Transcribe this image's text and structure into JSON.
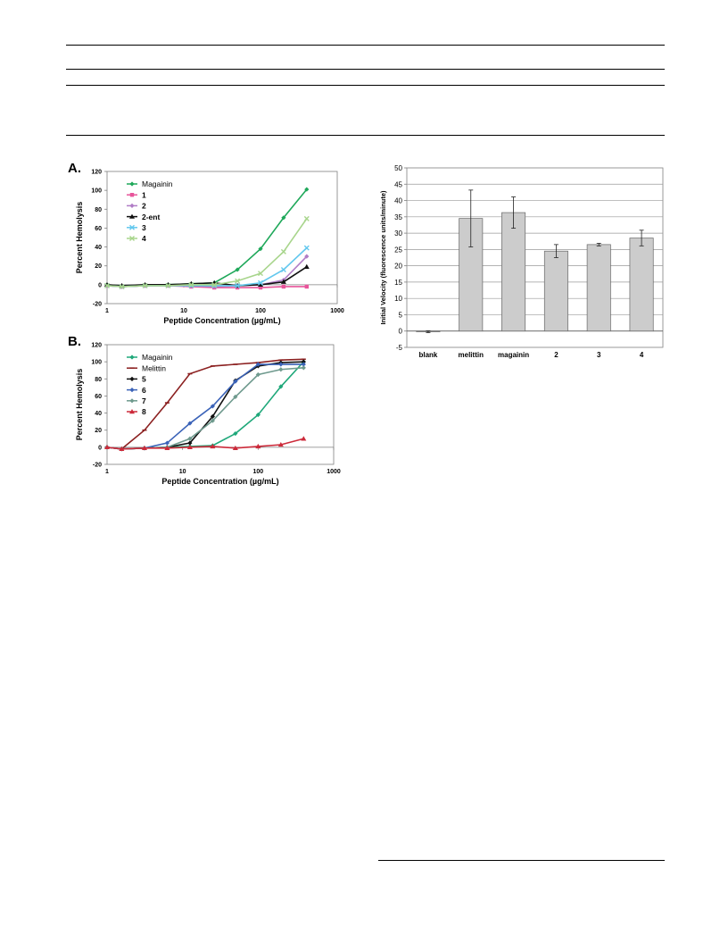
{
  "chart_data": [
    {
      "type": "line",
      "panel_label": "A.",
      "xlabel": "Peptide Concentration (µg/mL)",
      "ylabel": "Percent Hemolysis",
      "xscale": "log",
      "xlim": [
        1,
        1000
      ],
      "ylim": [
        -20,
        120
      ],
      "xticks": [
        1,
        10,
        100,
        1000
      ],
      "xticklabels": [
        "1",
        "10",
        "100",
        "1000"
      ],
      "yticks": [
        -20,
        0,
        20,
        40,
        60,
        80,
        100,
        120
      ],
      "yticklabels": [
        "-20",
        "0",
        "20",
        "40",
        "60",
        "80",
        "100",
        "120"
      ],
      "grid": false,
      "legend_position": "top-left",
      "x": [
        1,
        1.56,
        3.13,
        6.25,
        12.5,
        25,
        50,
        100,
        200,
        400
      ],
      "series": [
        {
          "name": "Magainin",
          "color": "#1fa85a",
          "marker": "diamond",
          "values": [
            0,
            -2,
            -1,
            0,
            1,
            2,
            16,
            38,
            71,
            101
          ]
        },
        {
          "name": "1",
          "color": "#e8559b",
          "marker": "square",
          "values": [
            -1,
            -2,
            -1,
            -1,
            -2,
            -3,
            -3,
            -3,
            -2,
            -2
          ]
        },
        {
          "name": "2",
          "color": "#b07cc6",
          "marker": "diamond",
          "values": [
            -1,
            -2,
            -1,
            -1,
            -1,
            -2,
            -1,
            0,
            5,
            30
          ]
        },
        {
          "name": "2-ent",
          "color": "#111111",
          "marker": "triangle",
          "values": [
            0,
            -1,
            0,
            0,
            1,
            2,
            -1,
            0,
            3,
            19
          ]
        },
        {
          "name": "3",
          "color": "#63c8ee",
          "marker": "cross",
          "values": [
            -1,
            -2,
            -1,
            -1,
            -1,
            -1,
            -1,
            2,
            16,
            39
          ]
        },
        {
          "name": "4",
          "color": "#a8d58c",
          "marker": "cross",
          "values": [
            -1,
            -2,
            -1,
            -1,
            0,
            0,
            4,
            12,
            35,
            70
          ]
        }
      ]
    },
    {
      "type": "line",
      "panel_label": "B.",
      "xlabel": "Peptide Concentration (µg/mL)",
      "ylabel": "Percent Hemolysis",
      "xscale": "log",
      "xlim": [
        1,
        1000
      ],
      "ylim": [
        -20,
        120
      ],
      "xticks": [
        1,
        10,
        100,
        1000
      ],
      "xticklabels": [
        "1",
        "10",
        "100",
        "1000"
      ],
      "yticks": [
        -20,
        0,
        20,
        40,
        60,
        80,
        100,
        120
      ],
      "yticklabels": [
        "-20",
        "0",
        "20",
        "40",
        "60",
        "80",
        "100",
        "120"
      ],
      "grid": false,
      "legend_position": "top-left",
      "x": [
        1,
        1.56,
        3.13,
        6.25,
        12.5,
        25,
        50,
        100,
        200,
        400
      ],
      "series": [
        {
          "name": "Magainin",
          "color": "#1fa87a",
          "marker": "diamond",
          "values": [
            0,
            -2,
            -1,
            0,
            1,
            2,
            16,
            38,
            71,
            100
          ]
        },
        {
          "name": "Melittin",
          "color": "#8b2020",
          "marker": "line",
          "values": [
            0,
            -2,
            20,
            52,
            86,
            95,
            97,
            99,
            102,
            103
          ]
        },
        {
          "name": "5",
          "color": "#111111",
          "marker": "diamond",
          "values": [
            0,
            -2,
            -1,
            0,
            5,
            36,
            78,
            95,
            99,
            100
          ]
        },
        {
          "name": "6",
          "color": "#3b63b8",
          "marker": "diamond",
          "values": [
            0,
            -2,
            -1,
            5,
            28,
            48,
            77,
            97,
            97,
            97
          ]
        },
        {
          "name": "7",
          "color": "#6f9a8e",
          "marker": "diamond",
          "values": [
            0,
            -2,
            -1,
            0,
            10,
            31,
            59,
            85,
            91,
            93
          ]
        },
        {
          "name": "8",
          "color": "#cc2a3a",
          "marker": "triangle",
          "values": [
            0,
            -2,
            -1,
            -1,
            0,
            1,
            -1,
            1,
            3,
            10
          ]
        }
      ]
    },
    {
      "type": "bar",
      "ylabel": "Initial Velocity (fluorescence units/minute)",
      "categories": [
        "blank",
        "melittin",
        "magainin",
        "2",
        "3",
        "4"
      ],
      "values": [
        -0.2,
        34.5,
        36.3,
        24.5,
        26.5,
        28.5
      ],
      "error": [
        0.3,
        8.7,
        4.8,
        2.0,
        0.4,
        2.4
      ],
      "ylim": [
        -5,
        50
      ],
      "yticks": [
        -5,
        0,
        5,
        10,
        15,
        20,
        25,
        30,
        35,
        40,
        45,
        50
      ],
      "yticklabels": [
        "-5",
        "0",
        "5",
        "10",
        "15",
        "20",
        "25",
        "30",
        "35",
        "40",
        "45",
        "50"
      ],
      "grid": true,
      "bar_color": "#cccccc"
    }
  ]
}
